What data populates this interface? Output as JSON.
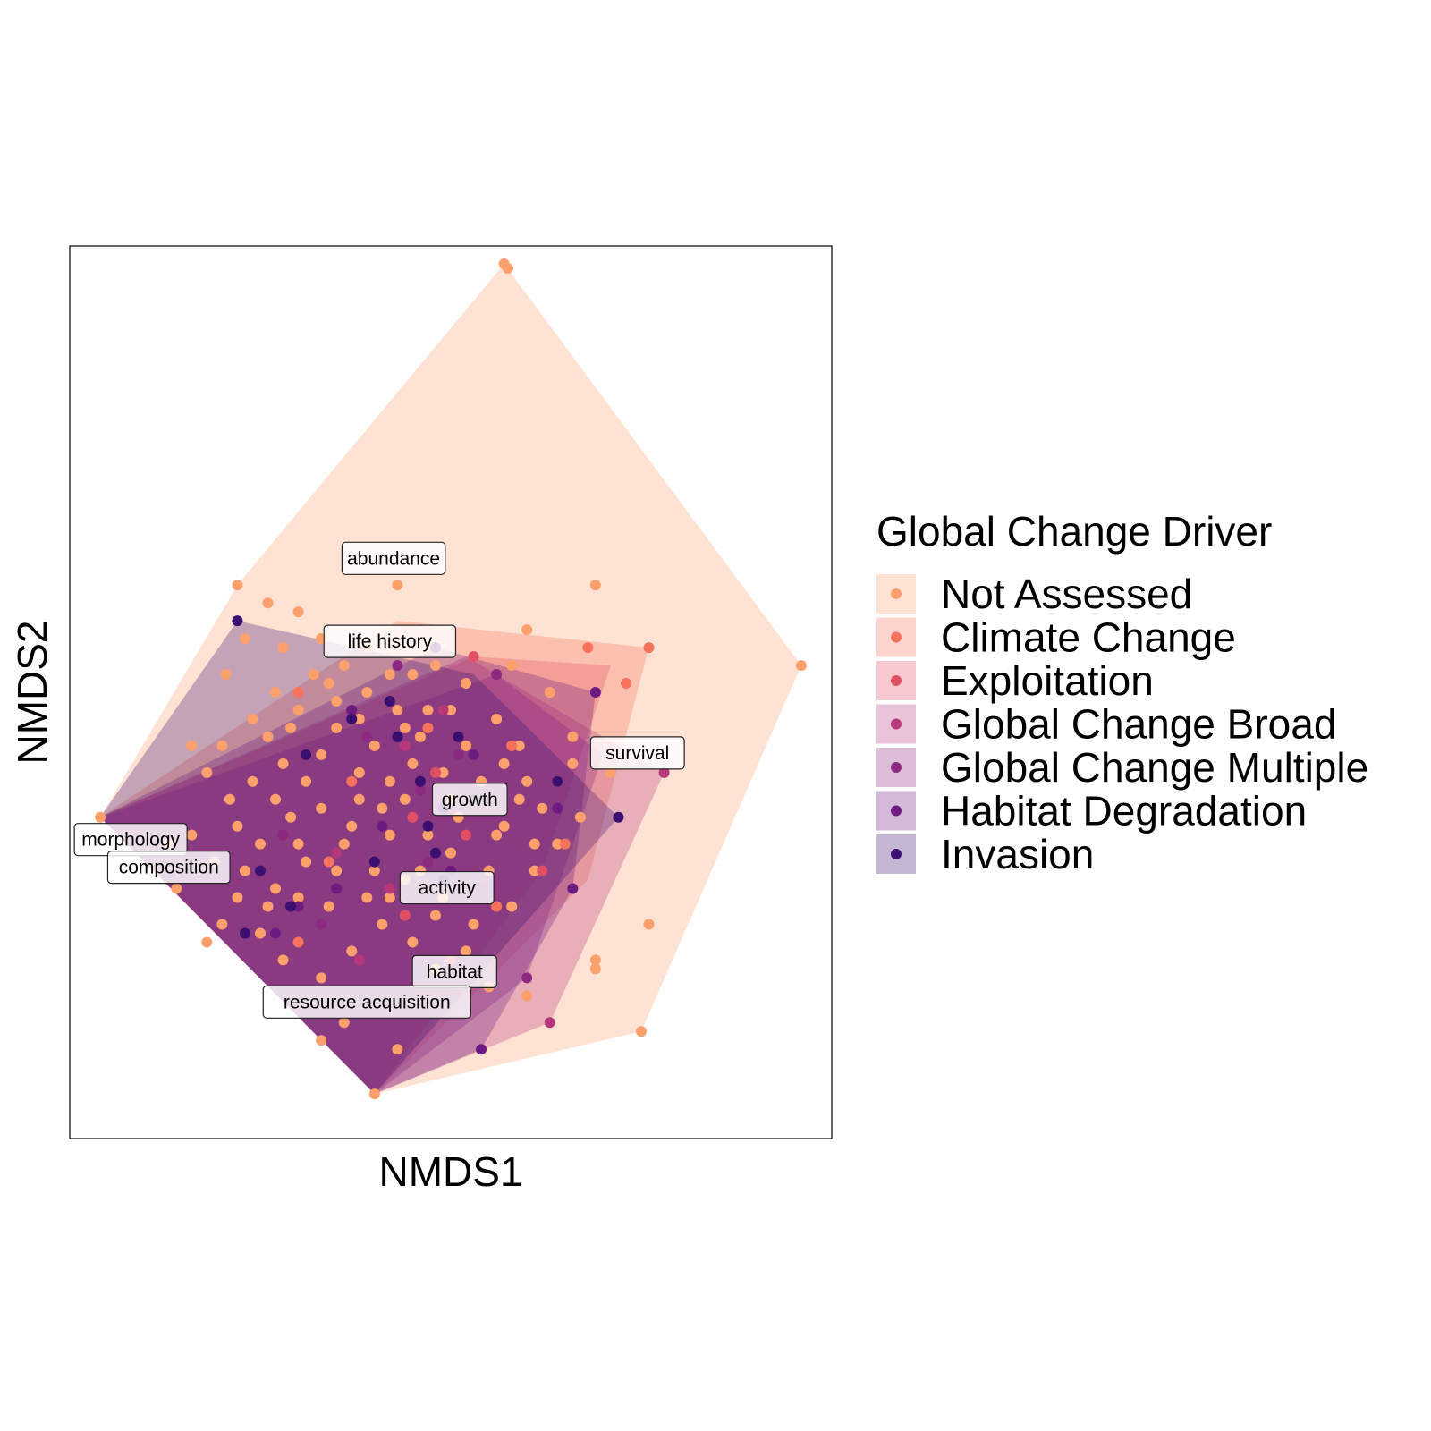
{
  "chart_data": {
    "type": "scatter",
    "xlabel": "NMDS1",
    "ylabel": "NMDS2",
    "xlim": [
      0,
      100
    ],
    "ylim": [
      0,
      100
    ],
    "legend": {
      "title": "Global Change Driver",
      "placement": "right"
    },
    "series": [
      {
        "name": "Not Assessed",
        "color": "#FDA06C",
        "hull": [
          [
            57,
            98
          ],
          [
            96,
            53
          ],
          [
            75,
            12
          ],
          [
            40,
            5
          ],
          [
            4,
            36
          ],
          [
            22,
            62
          ]
        ],
        "points": [
          [
            57,
            98
          ],
          [
            57.5,
            97.5
          ],
          [
            96,
            53
          ],
          [
            75,
            12
          ],
          [
            40,
            5
          ],
          [
            4,
            36
          ],
          [
            22,
            62
          ],
          [
            26,
            60
          ],
          [
            30,
            59
          ],
          [
            43,
            62
          ],
          [
            69,
            62
          ],
          [
            60,
            57
          ],
          [
            20.5,
            52
          ],
          [
            76,
            24
          ],
          [
            69,
            20
          ],
          [
            69,
            19
          ],
          [
            33,
            56
          ],
          [
            32,
            52
          ],
          [
            27,
            50
          ],
          [
            29,
            46
          ],
          [
            35,
            49
          ],
          [
            39,
            50
          ],
          [
            44,
            46
          ],
          [
            47,
            48
          ],
          [
            52,
            51
          ],
          [
            56,
            47
          ],
          [
            59,
            44
          ],
          [
            45,
            42
          ],
          [
            42,
            40
          ],
          [
            38,
            41
          ],
          [
            33,
            43
          ],
          [
            28,
            42
          ],
          [
            24,
            40
          ],
          [
            21,
            38
          ],
          [
            16,
            34
          ],
          [
            19,
            31
          ],
          [
            23,
            30
          ],
          [
            27,
            28
          ],
          [
            31,
            31
          ],
          [
            36,
            33
          ],
          [
            40,
            30
          ],
          [
            44,
            29
          ],
          [
            49,
            27
          ],
          [
            53,
            24
          ],
          [
            58,
            26
          ],
          [
            61,
            30
          ],
          [
            64,
            33
          ],
          [
            62,
            37
          ],
          [
            57,
            35
          ],
          [
            51,
            36
          ],
          [
            47,
            34
          ],
          [
            41,
            37
          ],
          [
            37,
            35
          ],
          [
            33,
            37
          ],
          [
            29,
            36
          ],
          [
            25,
            33
          ],
          [
            22,
            27
          ],
          [
            25,
            23
          ],
          [
            28,
            20
          ],
          [
            33,
            18
          ],
          [
            37,
            21
          ],
          [
            41,
            24
          ],
          [
            45,
            22
          ],
          [
            48,
            19
          ],
          [
            52,
            21
          ],
          [
            55,
            17
          ],
          [
            60,
            16
          ],
          [
            36,
            13
          ],
          [
            33,
            11
          ],
          [
            43,
            10
          ],
          [
            46,
            45
          ],
          [
            40,
            44
          ],
          [
            35,
            46
          ],
          [
            31,
            40
          ],
          [
            27,
            38
          ],
          [
            49,
            41
          ],
          [
            54,
            40
          ],
          [
            44,
            38
          ],
          [
            38,
            38
          ],
          [
            42,
            34
          ],
          [
            50,
            32
          ],
          [
            46,
            30
          ],
          [
            55,
            30
          ],
          [
            30,
            27
          ],
          [
            34,
            26
          ],
          [
            39,
            27
          ],
          [
            26,
            26
          ],
          [
            20,
            24
          ],
          [
            18,
            22
          ],
          [
            14,
            28
          ],
          [
            13,
            33
          ],
          [
            20,
            44
          ],
          [
            18,
            41
          ],
          [
            26,
            45
          ],
          [
            34,
            51
          ],
          [
            38,
            47
          ],
          [
            42,
            52
          ],
          [
            48,
            53
          ],
          [
            53,
            54
          ],
          [
            58,
            53
          ],
          [
            63,
            50
          ],
          [
            66,
            45
          ],
          [
            64,
            40
          ],
          [
            60,
            40
          ],
          [
            57,
            42
          ],
          [
            52,
            44
          ],
          [
            43,
            48
          ],
          [
            30,
            48
          ],
          [
            24,
            47
          ],
          [
            22,
            35
          ],
          [
            30,
            33
          ],
          [
            35,
            30
          ],
          [
            42,
            27
          ],
          [
            48,
            25
          ],
          [
            56,
            34
          ],
          [
            59,
            38
          ],
          [
            61,
            33
          ],
          [
            67,
            36
          ],
          [
            66,
            42
          ],
          [
            71,
            41
          ],
          [
            50,
            48
          ],
          [
            45,
            52
          ],
          [
            39,
            55
          ],
          [
            36,
            53
          ],
          [
            28,
            55
          ],
          [
            23,
            56
          ],
          [
            16,
            44
          ]
        ]
      },
      {
        "name": "Climate Change",
        "color": "#F7725C",
        "hull": [
          [
            43,
            58
          ],
          [
            76,
            55
          ],
          [
            68,
            29
          ],
          [
            40,
            5
          ],
          [
            4,
            36
          ]
        ],
        "points": [
          [
            76,
            55
          ],
          [
            73,
            51
          ],
          [
            68,
            55
          ],
          [
            30,
            50
          ],
          [
            47,
            46
          ],
          [
            58,
            44
          ],
          [
            50,
            38
          ],
          [
            37,
            40
          ],
          [
            34,
            31
          ],
          [
            30,
            22
          ],
          [
            65,
            33
          ],
          [
            56,
            26
          ]
        ]
      },
      {
        "name": "Exploitation",
        "color": "#E14F65",
        "hull": [
          [
            53,
            54
          ],
          [
            71,
            53
          ],
          [
            62,
            30
          ],
          [
            40,
            5
          ],
          [
            4,
            36
          ]
        ],
        "points": [
          [
            53,
            54
          ],
          [
            48,
            41
          ],
          [
            52,
            34
          ],
          [
            44,
            25
          ],
          [
            50,
            20
          ],
          [
            62,
            30
          ],
          [
            45,
            36
          ]
        ]
      },
      {
        "name": "Global Change Broad",
        "color": "#B6377A",
        "hull": [
          [
            52,
            54
          ],
          [
            78,
            41
          ],
          [
            63,
            13
          ],
          [
            40,
            5
          ],
          [
            4,
            36
          ]
        ],
        "points": [
          [
            78,
            41
          ],
          [
            63,
            13
          ],
          [
            49,
            48
          ],
          [
            44,
            44
          ],
          [
            35,
            32
          ],
          [
            42,
            28
          ],
          [
            49,
            37
          ],
          [
            38,
            20
          ]
        ]
      },
      {
        "name": "Global Change Multiple",
        "color": "#8C2981",
        "hull": [
          [
            56,
            52
          ],
          [
            70,
            43
          ],
          [
            60,
            18
          ],
          [
            40,
            5
          ],
          [
            4,
            36
          ]
        ],
        "points": [
          [
            56,
            52
          ],
          [
            60,
            18
          ],
          [
            43,
            53
          ],
          [
            39,
            45
          ],
          [
            51,
            43
          ],
          [
            47,
            31
          ],
          [
            33,
            24
          ],
          [
            28,
            34
          ],
          [
            46,
            39
          ],
          [
            54,
            28
          ]
        ]
      },
      {
        "name": "Habitat Degradation",
        "color": "#6C1C81",
        "hull": [
          [
            48,
            55
          ],
          [
            69,
            50
          ],
          [
            66,
            28
          ],
          [
            54,
            10
          ],
          [
            40,
            5
          ],
          [
            4,
            36
          ]
        ],
        "points": [
          [
            48,
            55
          ],
          [
            69,
            50
          ],
          [
            66,
            28
          ],
          [
            54,
            10
          ],
          [
            37,
            48
          ],
          [
            53,
            43
          ],
          [
            46,
            40
          ],
          [
            41,
            35
          ],
          [
            30,
            26
          ],
          [
            27,
            23
          ],
          [
            35,
            28
          ],
          [
            50,
            30
          ],
          [
            64,
            37
          ]
        ]
      },
      {
        "name": "Invasion",
        "color": "#3B0F70",
        "hull": [
          [
            22,
            58
          ],
          [
            53,
            52
          ],
          [
            72,
            36
          ],
          [
            40,
            5
          ],
          [
            4,
            36
          ]
        ],
        "points": [
          [
            22,
            58
          ],
          [
            72,
            36
          ],
          [
            37,
            47
          ],
          [
            42,
            49
          ],
          [
            49,
            37
          ],
          [
            46,
            40
          ],
          [
            53,
            38
          ],
          [
            64,
            40
          ],
          [
            31,
            43
          ],
          [
            40,
            31
          ],
          [
            48,
            32
          ],
          [
            49,
            29
          ],
          [
            25,
            30
          ],
          [
            29,
            26
          ],
          [
            23,
            23
          ],
          [
            47,
            35
          ],
          [
            43,
            45
          ],
          [
            51,
            45
          ]
        ]
      }
    ],
    "trait_labels": [
      {
        "text": "abundance",
        "x": 42.5,
        "y": 65
      },
      {
        "text": "life history",
        "x": 42,
        "y": 55.7
      },
      {
        "text": "survival",
        "x": 74.5,
        "y": 43.2
      },
      {
        "text": "growth",
        "x": 52.5,
        "y": 38
      },
      {
        "text": "morphology",
        "x": 8,
        "y": 33.5
      },
      {
        "text": "composition",
        "x": 13,
        "y": 30.4
      },
      {
        "text": "activity",
        "x": 49.5,
        "y": 28.1
      },
      {
        "text": "habitat",
        "x": 50.5,
        "y": 18.7
      },
      {
        "text": "resource acquisition",
        "x": 39,
        "y": 15.3
      }
    ]
  }
}
